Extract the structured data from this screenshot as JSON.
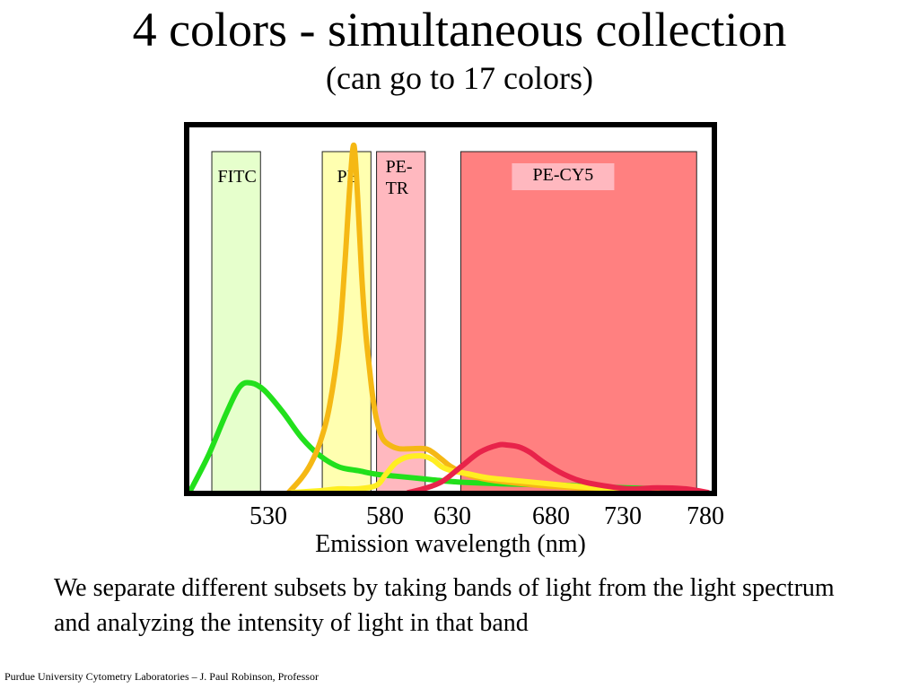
{
  "slide": {
    "title": "4 colors - simultaneous collection",
    "subtitle": "(can go to 17 colors)",
    "caption": "We separate different subsets by taking bands of light from the light spectrum and analyzing the intensity of light in that band",
    "footer": "Purdue University Cytometry Laboratories – J. Paul Robinson, Professor"
  },
  "chart_data": {
    "type": "line",
    "title": "",
    "xlabel": "Emission wavelength (nm)",
    "ylabel": "",
    "x_ticks": [
      530,
      580,
      630,
      680,
      730,
      780
    ],
    "xlim": [
      500,
      780
    ],
    "ylim": [
      0,
      100
    ],
    "grid": false,
    "bands": [
      {
        "label": "FITC",
        "x0": 512,
        "x1": 538,
        "color": "#e6ffcc"
      },
      {
        "label": "PE",
        "x0": 571,
        "x1": 597,
        "color": "#ffffb0"
      },
      {
        "label": "PE-TR",
        "label_lines": [
          "PE-",
          "TR"
        ],
        "x0": 600,
        "x1": 626,
        "color": "#ffb8bf"
      },
      {
        "label": "PE-CY5",
        "x0": 645,
        "x1": 771,
        "color": "#ff8080"
      }
    ],
    "series": [
      {
        "color": "#22e01c",
        "x": [
          500,
          510,
          520,
          527,
          533,
          540,
          550,
          560,
          570,
          580,
          590,
          600,
          610,
          620,
          630,
          640,
          660,
          680,
          700,
          720,
          740,
          760
        ],
        "y": [
          0,
          10,
          22,
          29,
          30,
          28,
          22,
          15,
          10,
          7,
          6,
          5,
          4.5,
          4,
          3.5,
          3,
          2.5,
          2.2,
          2,
          1.5,
          1.2,
          1
        ]
      },
      {
        "color": "#f5b814",
        "x": [
          553,
          560,
          565,
          570,
          575,
          580,
          583,
          586,
          588,
          590,
          592,
          594,
          596,
          598,
          600,
          603,
          607,
          612,
          618,
          626,
          630,
          635,
          640,
          648,
          660,
          680,
          700,
          720,
          740,
          750
        ],
        "y": [
          0,
          4,
          8,
          14,
          24,
          42,
          62,
          86,
          95,
          80,
          60,
          45,
          35,
          26,
          20,
          15,
          13,
          12,
          12,
          12,
          11,
          9,
          7,
          5,
          3.5,
          2.3,
          1.5,
          1,
          0.7,
          0.5
        ]
      },
      {
        "color": "#ffee22",
        "x": [
          555,
          570,
          580,
          590,
          600,
          605,
          610,
          615,
          620,
          625,
          630,
          635,
          640,
          650,
          660,
          680,
          700,
          720,
          745
        ],
        "y": [
          0,
          0.5,
          1,
          1,
          2,
          5,
          8,
          9.5,
          10,
          10,
          9,
          7,
          6,
          5,
          4,
          3,
          2,
          1.2,
          0.5
        ]
      },
      {
        "color": "#e8234a",
        "x": [
          617,
          625,
          635,
          645,
          655,
          665,
          670,
          676,
          682,
          690,
          700,
          710,
          720,
          735,
          750,
          765,
          777
        ],
        "y": [
          0,
          1,
          3,
          7,
          11,
          13,
          13,
          12.5,
          11,
          8,
          5,
          3,
          2,
          1,
          1.3,
          1,
          0
        ]
      }
    ]
  }
}
